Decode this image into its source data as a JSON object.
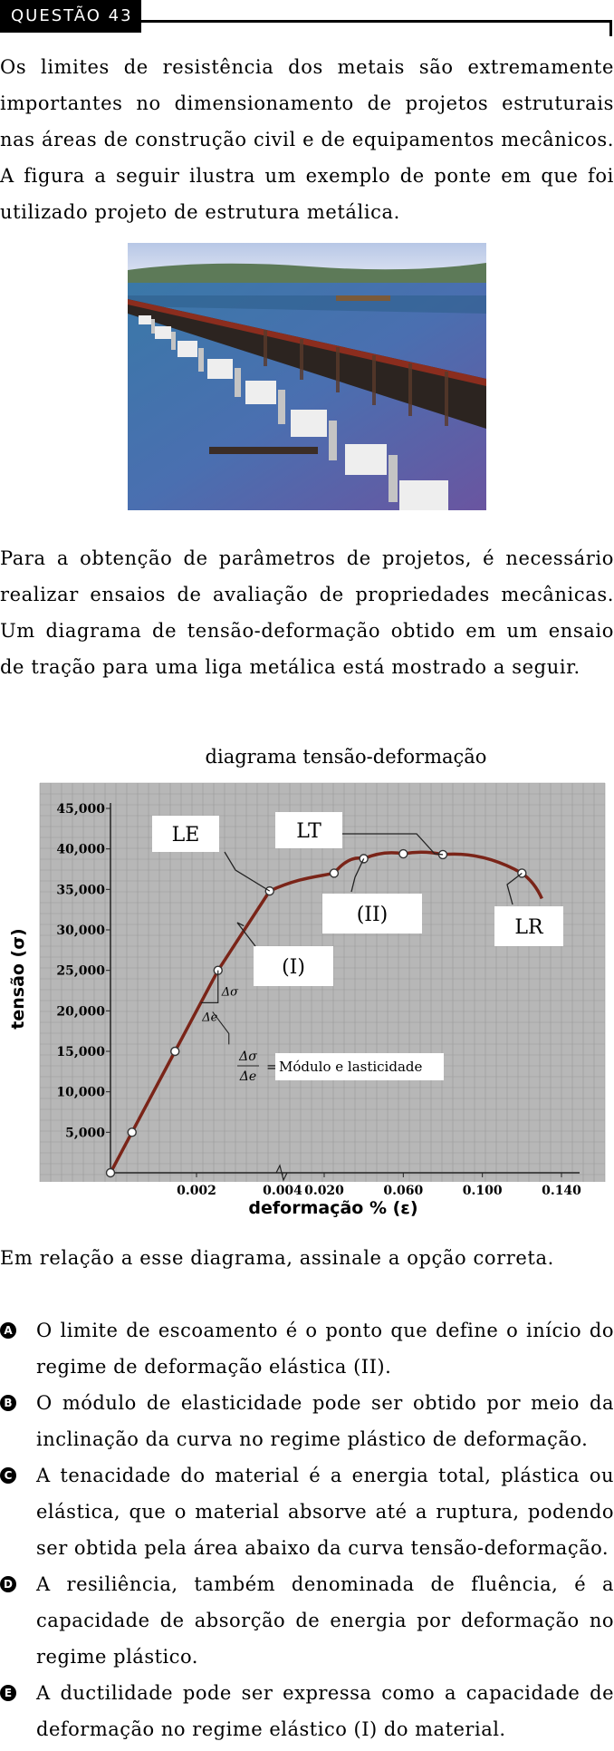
{
  "header": {
    "label": "QUESTÃO 43"
  },
  "intro": "Os limites de resistência dos metais são extremamente importantes no dimensionamento de projetos estruturais nas áreas de construção civil e de equipamentos mecânicos. A figura a seguir ilustra um exemplo de ponte em que foi utilizado projeto de estrutura metálica.",
  "para2": "Para a obtenção de parâmetros de projetos, é necessário realizar ensaios de avaliação de propriedades mecânicas. Um diagrama de tensão-deformação obtido em um ensaio de tração para uma liga metálica está mostrado a seguir.",
  "chart_data": {
    "type": "line",
    "title": "diagrama tensão-deformação",
    "xlabel": "deformação % (ε)",
    "ylabel": "tensão (σ)",
    "x_ticks": [
      "0.002",
      "0.004",
      "0.020",
      "0.060",
      "0.100",
      "0.140"
    ],
    "y_ticks": [
      "5,000",
      "10,000",
      "15,000",
      "20,000",
      "25,000",
      "30,000",
      "35,000",
      "40,000",
      "45,000"
    ],
    "ylim": [
      0,
      45000
    ],
    "grid": true,
    "points": [
      {
        "x": 0,
        "y": 0
      },
      {
        "x": 0.0005,
        "y": 5000
      },
      {
        "x": 0.0015,
        "y": 15000
      },
      {
        "x": 0.0025,
        "y": 25000
      },
      {
        "x": 0.0037,
        "y": 34800
      },
      {
        "x": 0.025,
        "y": 37000
      },
      {
        "x": 0.04,
        "y": 38800
      },
      {
        "x": 0.06,
        "y": 39400
      },
      {
        "x": 0.08,
        "y": 39300
      },
      {
        "x": 0.12,
        "y": 37000
      }
    ],
    "labels": {
      "le": "LE",
      "lt": "LT",
      "lr": "LR",
      "region_i": "(I)",
      "region_ii": "(II)",
      "delta_sigma": "Δσ",
      "delta_e": "Δe",
      "modulus_frac_num": "Δσ",
      "modulus_frac_den": "Δe",
      "modulus_equals": "=",
      "modulus_text": "Módulo e lasticidade"
    },
    "colors": {
      "curve": "#7a2418",
      "plot_bg": "#b7b7b7",
      "grid": "#9a9a9a"
    }
  },
  "question": "Em relação a esse diagrama, assinale a opção correta.",
  "options": [
    {
      "letter": "A",
      "text": "O limite de escoamento é o ponto que define o início do regime de deformação elástica (II)."
    },
    {
      "letter": "B",
      "text": "O módulo de elasticidade pode ser obtido por meio da inclinação da curva no regime plástico de deformação."
    },
    {
      "letter": "C",
      "text": "A tenacidade do material é a energia total, plástica ou elástica, que o material absorve até a ruptura, podendo ser obtida pela área abaixo da curva tensão-deformação."
    },
    {
      "letter": "D",
      "text": "A resiliência, também denominada de fluência, é a capacidade de absorção de energia por deformação no regime plástico."
    },
    {
      "letter": "E",
      "text": "A ductilidade pode ser expressa como a capacidade de deformação no regime elástico (I) do material."
    }
  ]
}
